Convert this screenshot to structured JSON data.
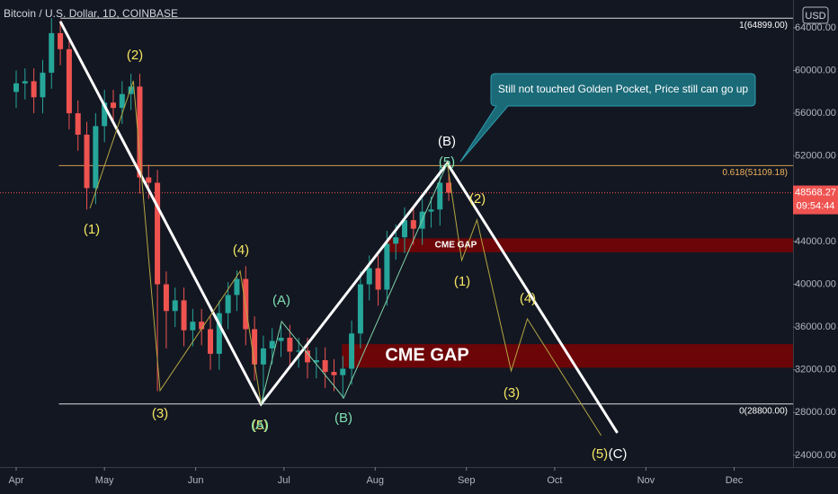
{
  "chart_data": {
    "type": "candlestick",
    "title": "Bitcoin / U.S. Dollar, 1D, COINBASE",
    "currency": "USD",
    "xlim": [
      -5.5,
      264
    ],
    "ylim": [
      22900,
      66600
    ],
    "xticks": [
      {
        "value": 0,
        "label": "Apr"
      },
      {
        "value": 30,
        "label": "May"
      },
      {
        "value": 61,
        "label": "Jun"
      },
      {
        "value": 91,
        "label": "Jul"
      },
      {
        "value": 122,
        "label": "Aug"
      },
      {
        "value": 153,
        "label": "Sep"
      },
      {
        "value": 183,
        "label": "Oct"
      },
      {
        "value": 214,
        "label": "Nov"
      },
      {
        "value": 244,
        "label": "Dec"
      }
    ],
    "yticks": [
      {
        "value": 24000,
        "label": "24000.00"
      },
      {
        "value": 28000,
        "label": "28000.00"
      },
      {
        "value": 32000,
        "label": "32000.00"
      },
      {
        "value": 36000,
        "label": "36000.00"
      },
      {
        "value": 40000,
        "label": "40000.00"
      },
      {
        "value": 44000,
        "label": "44000.00"
      },
      {
        "value": 48000,
        "label": "48000.00"
      },
      {
        "value": 52000,
        "label": "52000.00"
      },
      {
        "value": 56000,
        "label": "56000.00"
      },
      {
        "value": 60000,
        "label": "60000.00"
      },
      {
        "value": 64000,
        "label": "64000.00"
      }
    ],
    "up_color": "#26a69a",
    "down_color": "#ef5350",
    "x": [
      0,
      3,
      6,
      9,
      12,
      15,
      18,
      21,
      24,
      27,
      30,
      33,
      36,
      39,
      42,
      45,
      48,
      51,
      54,
      57,
      60,
      63,
      66,
      69,
      72,
      75,
      78,
      81,
      84,
      87,
      90,
      93,
      96,
      99,
      102,
      105,
      108,
      111,
      114,
      117,
      120,
      123,
      126,
      129,
      132,
      135,
      138,
      141,
      144,
      147
    ],
    "open": [
      58000,
      58800,
      59000,
      57500,
      59800,
      63500,
      62000,
      56000,
      54000,
      49000,
      54800,
      57000,
      56500,
      57800,
      58500,
      50000,
      49500,
      40000,
      37500,
      38500,
      35700,
      36500,
      35800,
      33500,
      37300,
      39000,
      40500,
      35800,
      32500,
      34000,
      34700,
      35000,
      33700,
      33800,
      32700,
      32900,
      31800,
      31500,
      32100,
      35400,
      40000,
      41500,
      39500,
      43800,
      44400,
      46000,
      45200,
      46800,
      47000,
      49500
    ],
    "high": [
      60000,
      60200,
      60200,
      61000,
      64899,
      64700,
      63200,
      57200,
      55200,
      56000,
      58200,
      58200,
      59000,
      59700,
      59700,
      51200,
      50700,
      41200,
      39700,
      39700,
      37700,
      37700,
      37000,
      38500,
      40200,
      41300,
      41700,
      37000,
      35200,
      35900,
      36200,
      36200,
      35000,
      35000,
      34100,
      34100,
      33000,
      33300,
      36600,
      41200,
      42700,
      42700,
      45000,
      45600,
      47200,
      47200,
      48000,
      48200,
      51100,
      50300
    ],
    "low": [
      56500,
      57300,
      56000,
      56000,
      58300,
      60500,
      54500,
      52500,
      47000,
      47500,
      53300,
      55000,
      55000,
      56300,
      48500,
      48000,
      30000,
      34000,
      36000,
      34200,
      34200,
      34300,
      32000,
      32000,
      35800,
      37500,
      34300,
      31000,
      28800,
      32500,
      33200,
      32200,
      32200,
      31200,
      31200,
      30300,
      30000,
      29300,
      30600,
      34000,
      38500,
      38000,
      38000,
      42300,
      42900,
      43700,
      43700,
      45300,
      45500,
      47800
    ],
    "close": [
      58800,
      59000,
      57500,
      59800,
      63500,
      62000,
      56000,
      54000,
      49000,
      54800,
      57000,
      56500,
      57800,
      58500,
      50000,
      49500,
      40000,
      37500,
      38500,
      35700,
      36500,
      35800,
      33500,
      37300,
      39000,
      40500,
      35800,
      32500,
      34000,
      34700,
      35000,
      33700,
      33800,
      32700,
      32900,
      31800,
      31500,
      32100,
      35400,
      40000,
      41500,
      39500,
      43800,
      44400,
      46000,
      45200,
      46800,
      47000,
      49500,
      48568
    ],
    "last_price": {
      "value": 48568.27,
      "label": "48568.27"
    },
    "countdown": "09:54:44",
    "fib_levels": [
      {
        "value": 64899,
        "label": "1(64899.00)",
        "color": "#ffffff",
        "start": 15
      },
      {
        "value": 51109.18,
        "label": "0.618(51109.18)",
        "color": "#f0b35a",
        "start": 14.5
      },
      {
        "value": 28800,
        "label": "0(28800.00)",
        "color": "#ffffff",
        "start": 14.5
      }
    ],
    "gaps": [
      {
        "label": "CME GAP",
        "from": 43000,
        "to": 44300,
        "start": 126
      },
      {
        "label": "CME GAP",
        "from": 32200,
        "to": 34400,
        "start": 110.7
      }
    ],
    "wave_lines": [
      {
        "color": "#ffffff",
        "x": [
          15,
          83.2,
          146.5,
          204.3
        ],
        "y": [
          64588,
          28790,
          51310,
          26100
        ]
      },
      {
        "color": "#b5a642",
        "x": [
          25.1,
          39.8,
          48.9,
          76.1,
          83.2
        ],
        "y": [
          47110,
          59040,
          30050,
          41230,
          28790
        ]
      },
      {
        "color": "#7fd3a8",
        "x": [
          83.2,
          90.2,
          111.3,
          146.5
        ],
        "y": [
          28790,
          36520,
          29380,
          51310
        ]
      },
      {
        "color": "#b5a642",
        "x": [
          146.5,
          151.4,
          156.6,
          168.2,
          173.7,
          198.8
        ],
        "y": [
          51310,
          42240,
          46020,
          31900,
          36770,
          25850
        ]
      }
    ],
    "wave_labels": [
      {
        "text": "(1)",
        "color": "#f5e663"
      },
      {
        "text": "(2)",
        "color": "#f5e663"
      },
      {
        "text": "(3)",
        "color": "#f5e663"
      },
      {
        "text": "(4)",
        "color": "#f5e663"
      },
      {
        "text": "(5)",
        "color": "#f5e663"
      },
      {
        "text": "(A)",
        "color": "#7fe0b0"
      },
      {
        "text": "(A)",
        "color": "#7fe0b0"
      },
      {
        "text": "(B)",
        "color": "#7fe0b0"
      },
      {
        "text": "(B)",
        "color": "#ffffff"
      },
      {
        "text": "(5)",
        "color": "#7fe0b0"
      },
      {
        "text": "(2)",
        "color": "#f5e663"
      },
      {
        "text": "(1)",
        "color": "#f5e663"
      },
      {
        "text": "(4)",
        "color": "#f5e663"
      },
      {
        "text": "(3)",
        "color": "#f5e663"
      },
      {
        "text": "(5)",
        "color": "#f5e663"
      },
      {
        "text": "(C)",
        "color": "#ffffff"
      }
    ],
    "callout": "Still not touched Golden Pocket, Price still can go up"
  }
}
